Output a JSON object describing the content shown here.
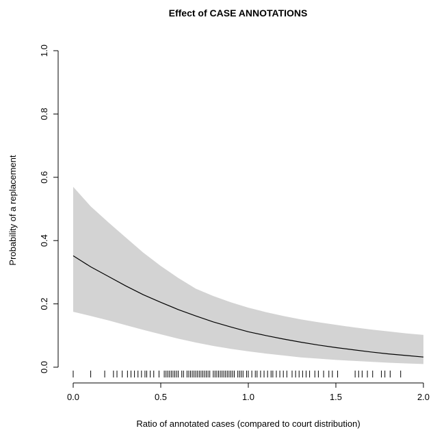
{
  "chart_data": {
    "type": "line",
    "title": "Effect of CASE ANNOTATIONS",
    "xlabel": "Ratio of annotated cases (compared to court distribution)",
    "ylabel": "Probability of a replacement",
    "xlim": [
      0,
      2
    ],
    "ylim": [
      0,
      1
    ],
    "x_ticks": [
      "0.0",
      "0.5",
      "1.0",
      "1.5",
      "2.0"
    ],
    "y_ticks": [
      "0.0",
      "0.2",
      "0.4",
      "0.6",
      "0.8",
      "1.0"
    ],
    "grid": false,
    "legend": "none",
    "line_color": "#000000",
    "band_color": "#d3d3d3",
    "series": [
      {
        "x": [
          0.0,
          0.1,
          0.2,
          0.3,
          0.4,
          0.5,
          0.6,
          0.7,
          0.8,
          0.9,
          1.0,
          1.1,
          1.2,
          1.3,
          1.4,
          1.5,
          1.6,
          1.7,
          1.8,
          1.9,
          2.0
        ],
        "y": [
          0.352,
          0.317,
          0.287,
          0.257,
          0.229,
          0.205,
          0.182,
          0.162,
          0.143,
          0.127,
          0.112,
          0.1,
          0.089,
          0.079,
          0.07,
          0.062,
          0.055,
          0.048,
          0.042,
          0.037,
          0.032
        ],
        "lower": [
          0.175,
          0.162,
          0.148,
          0.133,
          0.118,
          0.104,
          0.09,
          0.078,
          0.067,
          0.058,
          0.05,
          0.043,
          0.037,
          0.031,
          0.027,
          0.023,
          0.02,
          0.017,
          0.014,
          0.012,
          0.01
        ],
        "upper": [
          0.57,
          0.508,
          0.458,
          0.41,
          0.362,
          0.32,
          0.282,
          0.248,
          0.225,
          0.205,
          0.188,
          0.174,
          0.162,
          0.151,
          0.142,
          0.134,
          0.126,
          0.119,
          0.113,
          0.107,
          0.102
        ]
      }
    ],
    "rug": [
      0.0,
      0.1,
      0.18,
      0.23,
      0.25,
      0.28,
      0.31,
      0.33,
      0.35,
      0.37,
      0.39,
      0.41,
      0.42,
      0.44,
      0.46,
      0.49,
      0.52,
      0.53,
      0.54,
      0.55,
      0.56,
      0.57,
      0.58,
      0.59,
      0.6,
      0.62,
      0.63,
      0.65,
      0.66,
      0.67,
      0.68,
      0.69,
      0.7,
      0.71,
      0.72,
      0.73,
      0.74,
      0.75,
      0.76,
      0.77,
      0.78,
      0.8,
      0.81,
      0.82,
      0.83,
      0.84,
      0.85,
      0.86,
      0.87,
      0.88,
      0.89,
      0.9,
      0.91,
      0.92,
      0.94,
      0.95,
      0.96,
      0.97,
      0.99,
      1.0,
      1.02,
      1.04,
      1.05,
      1.07,
      1.09,
      1.11,
      1.13,
      1.14,
      1.16,
      1.18,
      1.2,
      1.22,
      1.25,
      1.27,
      1.29,
      1.31,
      1.33,
      1.35,
      1.38,
      1.4,
      1.43,
      1.46,
      1.48,
      1.51,
      1.61,
      1.63,
      1.65,
      1.68,
      1.71,
      1.76,
      1.78,
      1.81,
      1.87
    ]
  }
}
